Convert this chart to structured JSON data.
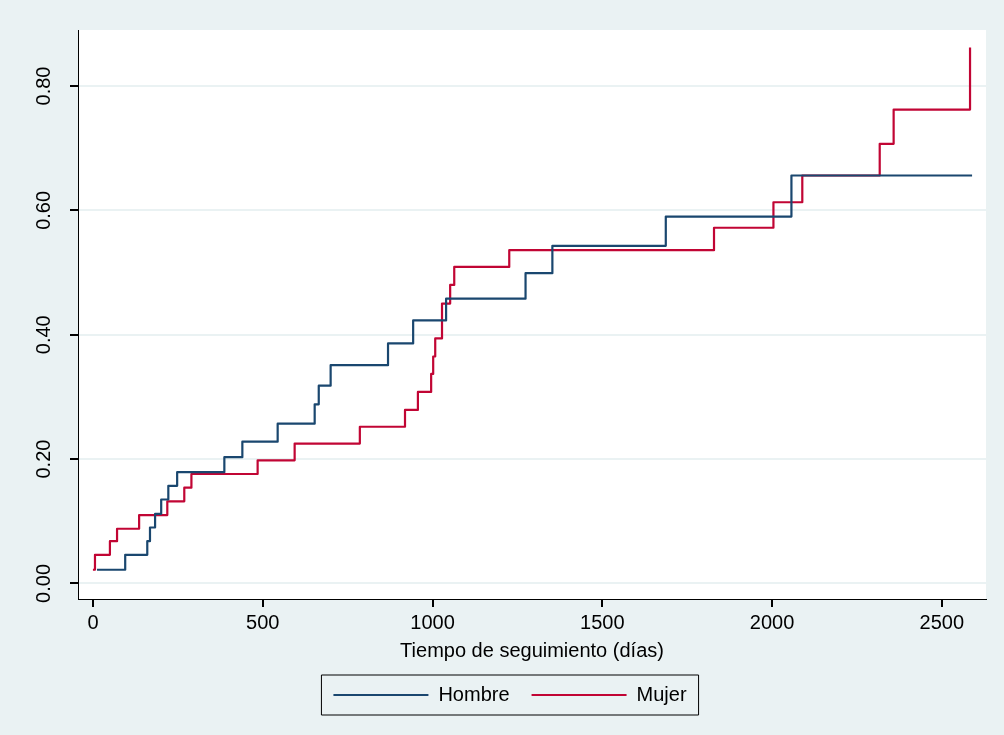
{
  "chart_data": {
    "type": "step",
    "xlabel": "Tiempo de seguimiento (días)",
    "xlim": [
      -44,
      2630
    ],
    "xticks": [
      0,
      500,
      1000,
      1500,
      2000,
      2500
    ],
    "ylim": [
      -0.025,
      0.89
    ],
    "yticks": [
      {
        "value": 0,
        "label": "0.00"
      },
      {
        "value": 0.2,
        "label": "0.20"
      },
      {
        "value": 0.4,
        "label": "0.40"
      },
      {
        "value": 0.6,
        "label": "0.60"
      },
      {
        "value": 0.8,
        "label": "0.80"
      }
    ],
    "grid": "y",
    "legend": "bottom",
    "line_style": "solid",
    "marker": "none",
    "series": [
      {
        "name": "Hombre",
        "color": "#1a476f",
        "x": [
          12,
          95,
          160,
          168,
          183,
          201,
          222,
          248,
          387,
          440,
          544,
          653,
          665,
          700,
          869,
          943,
          1040,
          1274,
          1353,
          1687,
          2057,
          2589
        ],
        "values": [
          0.022,
          0.046,
          0.068,
          0.09,
          0.112,
          0.135,
          0.157,
          0.179,
          0.203,
          0.228,
          0.257,
          0.288,
          0.318,
          0.351,
          0.386,
          0.423,
          0.458,
          0.499,
          0.543,
          0.59,
          0.656,
          0.656
        ]
      },
      {
        "name": "Mujer",
        "color": "#c10534",
        "x": [
          0,
          6,
          50,
          71,
          136,
          219,
          269,
          290,
          485,
          594,
          786,
          919,
          957,
          996,
          1002,
          1008,
          1028,
          1052,
          1064,
          1226,
          1829,
          2004,
          2089,
          2317,
          2358,
          2583,
          2583
        ],
        "values": [
          0.022,
          0.046,
          0.068,
          0.088,
          0.11,
          0.132,
          0.154,
          0.176,
          0.198,
          0.225,
          0.252,
          0.279,
          0.308,
          0.337,
          0.365,
          0.394,
          0.45,
          0.48,
          0.509,
          0.536,
          0.572,
          0.613,
          0.656,
          0.707,
          0.762,
          0.762,
          0.862
        ]
      }
    ]
  }
}
